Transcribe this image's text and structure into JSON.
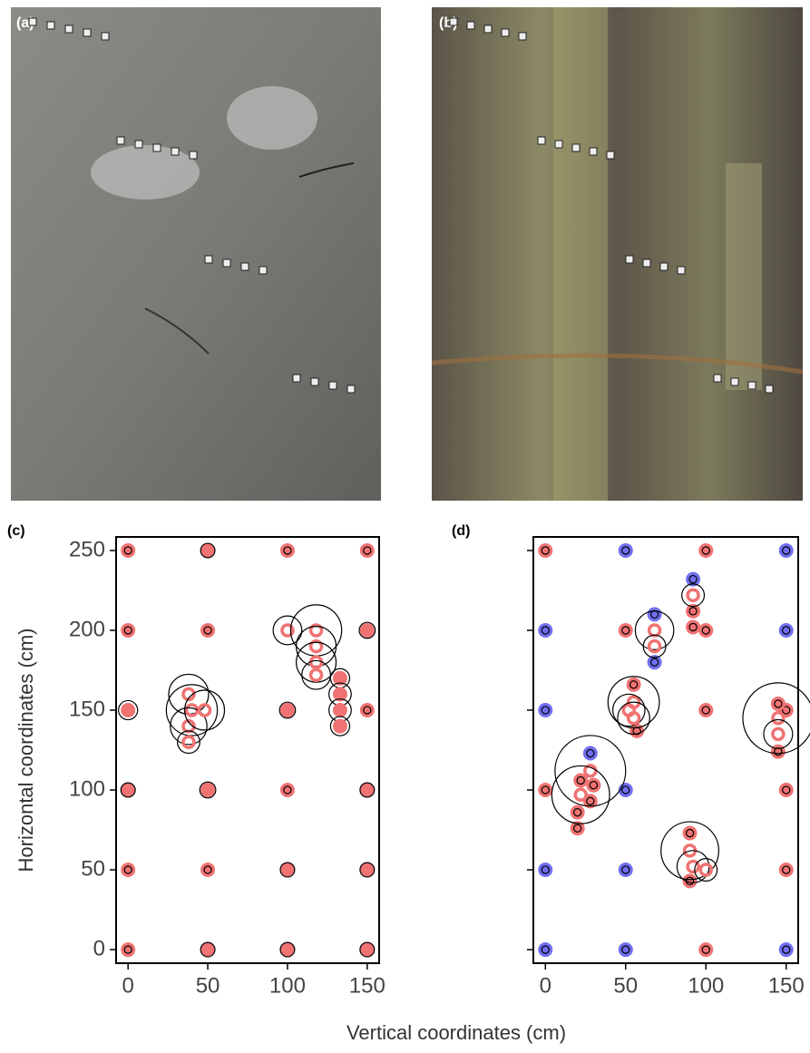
{
  "photos": [
    {
      "label": "(a)"
    },
    {
      "label": "(b)"
    }
  ],
  "shared": {
    "xlabel": "Vertical coordinates (cm)",
    "ylabel": "Horizontal coordinates (cm)"
  },
  "chart_data": [
    {
      "type": "scatter",
      "title": "(c)",
      "xlim": [
        -7.5,
        157.5
      ],
      "ylim": [
        -8.5,
        258.5
      ],
      "xticks": [
        0,
        50,
        100,
        150
      ],
      "yticks": [
        0,
        50,
        100,
        150,
        200,
        250
      ],
      "ytick_labels": true,
      "series": [
        {
          "color": "#f07272",
          "style": "filled",
          "x": [
            0,
            50,
            100,
            150,
            0,
            50,
            100,
            150,
            0,
            50,
            100,
            150,
            0,
            100,
            150,
            0,
            50,
            150,
            0,
            50,
            100,
            150,
            133,
            133,
            133,
            133
          ],
          "y": [
            0,
            0,
            0,
            0,
            50,
            50,
            50,
            50,
            100,
            100,
            100,
            100,
            150,
            150,
            150,
            200,
            200,
            200,
            250,
            250,
            250,
            250,
            170,
            160,
            150,
            140
          ],
          "r": [
            2.3,
            4.5,
            4.5,
            4.5,
            2.3,
            2.3,
            4.5,
            4.5,
            4.5,
            5,
            2.3,
            4.5,
            6,
            5,
            2.3,
            2.3,
            2.3,
            5,
            2.3,
            4.5,
            2.3,
            2.3,
            6,
            7,
            7,
            6
          ]
        },
        {
          "color": "#f07272",
          "style": "ring",
          "x": [
            38,
            40,
            38,
            38,
            48,
            100,
            118,
            118,
            118,
            118
          ],
          "y": [
            160,
            150,
            140,
            130,
            150,
            200,
            200,
            190,
            180,
            172
          ],
          "r": [
            12.5,
            16,
            11.5,
            7,
            12.5,
            9,
            16,
            12.5,
            12.5,
            9
          ]
        }
      ]
    },
    {
      "type": "scatter",
      "title": "(d)",
      "xlim": [
        -7.5,
        157.5
      ],
      "ylim": [
        -8.5,
        258.5
      ],
      "xticks": [
        0,
        50,
        100,
        150
      ],
      "yticks": [
        0,
        50,
        100,
        150,
        200,
        250
      ],
      "ytick_labels": false,
      "series": [
        {
          "color": "#6f6ff0",
          "style": "filled",
          "x": [
            50,
            150,
            0,
            150,
            0,
            50,
            0,
            50,
            0,
            50,
            150,
            68,
            68,
            92,
            28
          ],
          "y": [
            250,
            250,
            200,
            200,
            150,
            100,
            50,
            50,
            0,
            0,
            0,
            210,
            180,
            232,
            123
          ],
          "r": [
            2.3,
            2.3,
            2.3,
            2.3,
            2.3,
            2.3,
            2.3,
            2.3,
            2.3,
            2.3,
            2.3,
            2.3,
            2.3,
            2.3,
            2.3
          ]
        },
        {
          "color": "#f07272",
          "style": "filled",
          "x": [
            0,
            100,
            50,
            100,
            100,
            0,
            150,
            150,
            100,
            150,
            92,
            92,
            55,
            57,
            22,
            20,
            20,
            28,
            30,
            90,
            90,
            145,
            145
          ],
          "y": [
            250,
            250,
            200,
            200,
            150,
            100,
            100,
            50,
            0,
            150,
            212,
            202,
            166,
            137,
            106,
            86,
            76,
            93,
            103,
            73,
            43,
            124,
            154
          ],
          "r": [
            2.3,
            2.3,
            2.3,
            2.3,
            2.3,
            2.3,
            2.3,
            2.3,
            2.3,
            2.3,
            2.3,
            2.3,
            2.3,
            2.3,
            2.3,
            2.3,
            2.3,
            2.3,
            2.3,
            2.3,
            2.3,
            2.3,
            2.3
          ]
        },
        {
          "color": "#f07272",
          "style": "ring",
          "x": [
            68,
            68,
            92,
            55,
            52,
            55,
            28,
            22,
            90,
            92,
            100,
            145,
            145
          ],
          "y": [
            200,
            190,
            222,
            155,
            150,
            145,
            112,
            97,
            62,
            52,
            50,
            145,
            135
          ],
          "r": [
            12,
            7,
            7,
            16,
            10,
            10,
            22,
            18,
            18,
            10,
            7,
            22,
            9
          ]
        }
      ]
    }
  ]
}
